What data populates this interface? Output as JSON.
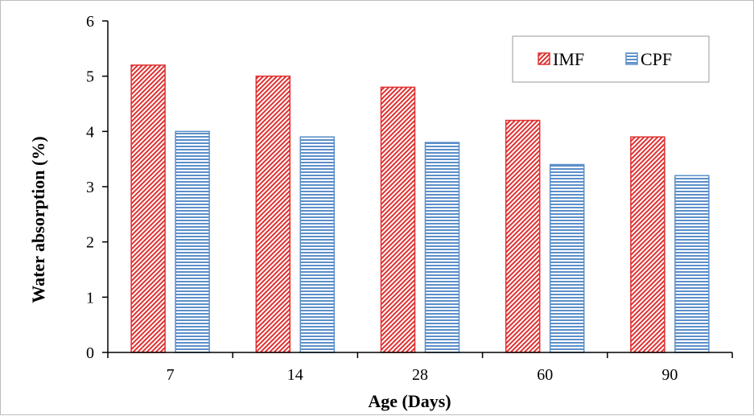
{
  "chart_data": {
    "type": "bar",
    "categories": [
      "7",
      "14",
      "28",
      "60",
      "90"
    ],
    "series": [
      {
        "name": "IMF",
        "values": [
          5.2,
          5.0,
          4.8,
          4.2,
          3.9
        ],
        "color": "#e03030",
        "pattern": "diagonal-hatch"
      },
      {
        "name": "CPF",
        "values": [
          4.0,
          3.9,
          3.8,
          3.4,
          3.2
        ],
        "color": "#5b8ec9",
        "pattern": "horizontal-lines"
      }
    ],
    "xlabel": "Age (Days)",
    "ylabel": "Water absorption (%)",
    "ylim": [
      0,
      6
    ],
    "yticks": [
      "0",
      "1",
      "2",
      "3",
      "4",
      "5",
      "6"
    ],
    "grid": false,
    "legend_position": "top-right"
  }
}
